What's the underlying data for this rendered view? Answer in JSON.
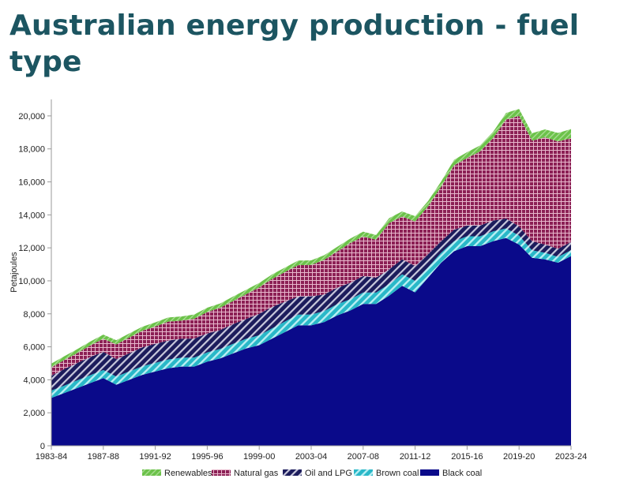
{
  "page": {
    "title": "Australian energy production - fuel type"
  },
  "chart_data": {
    "type": "area",
    "stacked": true,
    "title": "Australian energy production - fuel type",
    "ylabel": "Petajoules",
    "xlabel": "",
    "ylim": [
      0,
      21000
    ],
    "yticks": [
      0,
      2000,
      4000,
      6000,
      8000,
      10000,
      12000,
      14000,
      16000,
      18000,
      20000
    ],
    "ytick_labels": [
      "0",
      "2,000",
      "4,000",
      "6,000",
      "8,000",
      "10,000",
      "12,000",
      "14,000",
      "16,000",
      "18,000",
      "20,000"
    ],
    "x_tick_labels": [
      "1983-84",
      "1987-88",
      "1991-92",
      "1995-96",
      "1999-00",
      "2003-04",
      "2007-08",
      "2011-12",
      "2015-16",
      "2019-20",
      "2023-24"
    ],
    "x": [
      "1983-84",
      "1984-85",
      "1985-86",
      "1986-87",
      "1987-88",
      "1988-89",
      "1989-90",
      "1990-91",
      "1991-92",
      "1992-93",
      "1993-94",
      "1994-95",
      "1995-96",
      "1996-97",
      "1997-98",
      "1998-99",
      "1999-00",
      "2000-01",
      "2001-02",
      "2002-03",
      "2003-04",
      "2004-05",
      "2005-06",
      "2006-07",
      "2007-08",
      "2008-09",
      "2009-10",
      "2010-11",
      "2011-12",
      "2012-13",
      "2013-14",
      "2014-15",
      "2015-16",
      "2016-17",
      "2017-18",
      "2018-19",
      "2019-20",
      "2020-21",
      "2021-22",
      "2022-23",
      "2023-24"
    ],
    "legend_position": "bottom",
    "series": [
      {
        "name": "Black coal",
        "color": "#0a0a8a",
        "pattern": "solid",
        "values": [
          2900,
          3200,
          3500,
          3800,
          4100,
          3700,
          4000,
          4300,
          4500,
          4700,
          4800,
          4800,
          5100,
          5300,
          5600,
          5900,
          6100,
          6500,
          6900,
          7300,
          7300,
          7500,
          7900,
          8200,
          8600,
          8600,
          9100,
          9700,
          9300,
          10200,
          11100,
          11800,
          12100,
          12100,
          12400,
          12600,
          12200,
          11400,
          11300,
          11100,
          11500
        ]
      },
      {
        "name": "Brown coal",
        "color": "#3ec8d4",
        "pattern": "diagonal-stripe",
        "values": [
          450,
          450,
          470,
          480,
          490,
          500,
          510,
          520,
          530,
          530,
          540,
          550,
          560,
          570,
          580,
          590,
          600,
          620,
          640,
          650,
          660,
          670,
          680,
          680,
          690,
          690,
          700,
          700,
          700,
          620,
          600,
          600,
          600,
          600,
          600,
          580,
          550,
          450,
          400,
          350,
          350
        ]
      },
      {
        "name": "Oil and LPG",
        "color": "#1c1c5c",
        "pattern": "diagonal-stripe",
        "values": [
          900,
          1000,
          1050,
          1100,
          1100,
          1050,
          1100,
          1150,
          1150,
          1150,
          1150,
          1150,
          1150,
          1150,
          1200,
          1200,
          1300,
          1300,
          1200,
          1100,
          1100,
          1000,
          1000,
          1000,
          1000,
          900,
          900,
          900,
          900,
          800,
          700,
          700,
          650,
          650,
          650,
          600,
          550,
          550,
          500,
          500,
          500
        ]
      },
      {
        "name": "Natural gas",
        "color": "#8c2055",
        "pattern": "grid",
        "values": [
          500,
          550,
          600,
          700,
          800,
          900,
          950,
          1000,
          1050,
          1150,
          1100,
          1200,
          1300,
          1350,
          1400,
          1500,
          1600,
          1700,
          1800,
          1900,
          1900,
          2100,
          2200,
          2400,
          2400,
          2300,
          2800,
          2600,
          2700,
          2900,
          3300,
          3900,
          4100,
          4500,
          5000,
          6000,
          6700,
          6100,
          6500,
          6500,
          6300
        ]
      },
      {
        "name": "Renewables",
        "color": "#6cc24a",
        "pattern": "solid",
        "values": [
          230,
          230,
          240,
          240,
          250,
          250,
          250,
          250,
          250,
          250,
          250,
          260,
          260,
          260,
          270,
          270,
          270,
          270,
          270,
          280,
          280,
          280,
          280,
          280,
          290,
          290,
          300,
          310,
          320,
          320,
          320,
          340,
          350,
          360,
          380,
          400,
          420,
          450,
          480,
          520,
          550
        ]
      }
    ]
  }
}
